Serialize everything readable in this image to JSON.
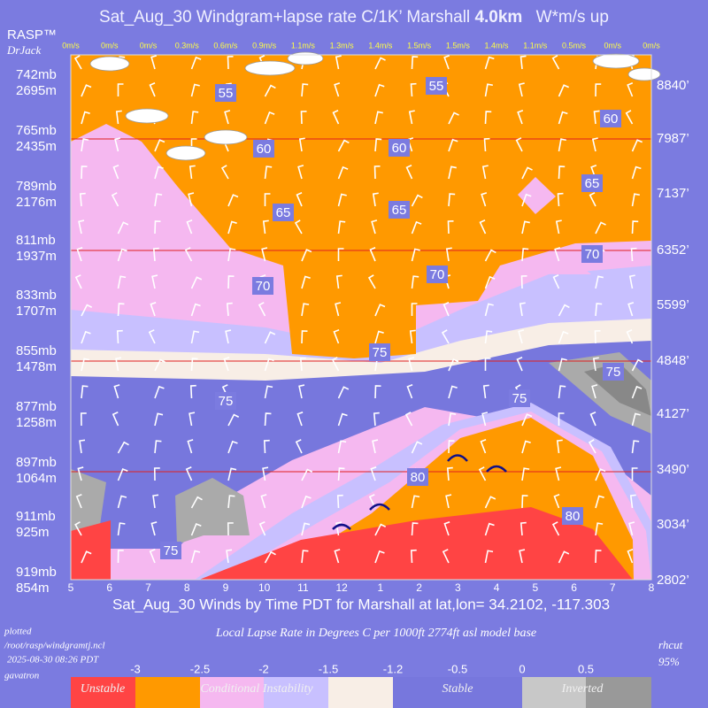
{
  "chart_data": {
    "type": "windgram",
    "title": "Sat_Aug_30 Windgram+lapse rate C/1K’  Marshall",
    "title_bold": "4.0km",
    "title_suffix": "W*m/s up",
    "brand": "RASP™",
    "brand_sub": "DrJack",
    "pressure_labels": [
      "742mb",
      "765mb",
      "789mb",
      "811mb",
      "833mb",
      "855mb",
      "877mb",
      "897mb",
      "911mb",
      "919mb"
    ],
    "altitude_m_labels": [
      "2695m",
      "2435m",
      "2176m",
      "1937m",
      "1707m",
      "1478m",
      "1258m",
      "1064m",
      "925m",
      "854m"
    ],
    "altitude_ft_labels": [
      "8840’",
      "7987’",
      "7137’",
      "6352’",
      "5599’",
      "4848’",
      "4127’",
      "3490’",
      "3034’",
      "2802’"
    ],
    "wstar": [
      {
        "value": 0,
        "label": "0m/s"
      },
      {
        "value": 0,
        "label": "0m/s"
      },
      {
        "value": 0,
        "label": "0m/s"
      },
      {
        "value": 0.3,
        "label": "0.3m/s"
      },
      {
        "value": 0.6,
        "label": "0.6m/s"
      },
      {
        "value": 0.9,
        "label": "0.9m/s"
      },
      {
        "value": 1.1,
        "label": "1.1m/s"
      },
      {
        "value": 1.3,
        "label": "1.3m/s"
      },
      {
        "value": 1.4,
        "label": "1.4m/s"
      },
      {
        "value": 1.5,
        "label": "1.5m/s"
      },
      {
        "value": 1.5,
        "label": "1.5m/s"
      },
      {
        "value": 1.4,
        "label": "1.4m/s"
      },
      {
        "value": 1.1,
        "label": "1.1m/s"
      },
      {
        "value": 0.5,
        "label": "0.5m/s"
      },
      {
        "value": 0,
        "label": "0m/s"
      },
      {
        "value": 0,
        "label": "0m/s"
      }
    ],
    "categories": [
      "5",
      "6",
      "7",
      "8",
      "9",
      "10",
      "11",
      "12",
      "1",
      "2",
      "3",
      "4",
      "5",
      "6",
      "7",
      "8"
    ],
    "x_title": "Sat_Aug_30 Winds by Time PDT for Marshall at lat,lon= 34.2102, -117.303",
    "contour_labels": [
      55,
      55,
      60,
      60,
      60,
      65,
      65,
      65,
      70,
      70,
      70,
      75,
      75,
      75,
      75,
      75,
      80,
      80
    ],
    "footer": {
      "plotted": "plotted",
      "path": "/root/rasp/windgramtj.ncl",
      "date": "2025-08-30 08:26 PDT",
      "host": "gavatron",
      "rhcut": "rhcut",
      "rhcut_value": "95%"
    },
    "legend": {
      "title": "Local Lapse Rate in Degrees C per 1000ft   2774ft asl model base",
      "ticks": [
        -3,
        -2.5,
        -2,
        -1.5,
        -1.2,
        -0.5,
        0,
        0.5
      ],
      "labels": [
        "Unstable",
        "Conditional Instability",
        "Stable",
        "Inverted"
      ]
    }
  }
}
